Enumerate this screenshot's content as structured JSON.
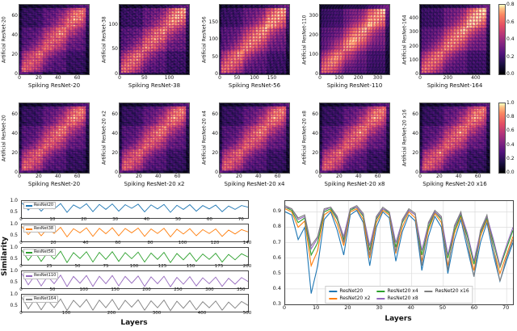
{
  "colorbars": [
    {
      "ticks": [
        0.0,
        0.2,
        0.4,
        0.6,
        0.8
      ],
      "vmax": 0.8
    },
    {
      "ticks": [
        0.0,
        0.2,
        0.4,
        0.6,
        0.8,
        1.0
      ],
      "vmax": 1.0
    }
  ],
  "chart_data": [
    {
      "type": "heatmap",
      "xlabel": "Spiking ResNet-20",
      "ylabel": "Artificial ResNet-20",
      "n_layers": 72,
      "xticks": [
        0,
        20,
        40,
        60
      ],
      "yticks": [
        0,
        20,
        40,
        60
      ],
      "colormap": "magma",
      "vmin": 0.0,
      "vmax": 0.8,
      "seed": 1
    },
    {
      "type": "heatmap",
      "xlabel": "Spiking ResNet-38",
      "ylabel": "Artificial ResNet-38",
      "n_layers": 140,
      "xticks": [
        0,
        50,
        100
      ],
      "yticks": [
        0,
        50,
        100
      ],
      "colormap": "magma",
      "vmin": 0.0,
      "vmax": 0.8,
      "seed": 2
    },
    {
      "type": "heatmap",
      "xlabel": "Spiking ResNet-56",
      "ylabel": "Artificial ResNet-56",
      "n_layers": 200,
      "xticks": [
        0,
        50,
        100,
        150
      ],
      "yticks": [
        0,
        50,
        100,
        150
      ],
      "colormap": "magma",
      "vmin": 0.0,
      "vmax": 0.8,
      "seed": 3
    },
    {
      "type": "heatmap",
      "xlabel": "Spiking ResNet-110",
      "ylabel": "Artificial ResNet-110",
      "n_layers": 360,
      "xticks": [
        0,
        100,
        200,
        300
      ],
      "yticks": [
        0,
        100,
        200,
        300
      ],
      "colormap": "magma",
      "vmin": 0.0,
      "vmax": 0.8,
      "seed": 4
    },
    {
      "type": "heatmap",
      "xlabel": "Spiking ResNet-164",
      "ylabel": "Artificial ResNet-164",
      "n_layers": 500,
      "xticks": [
        0,
        200,
        400
      ],
      "yticks": [
        0,
        100,
        200,
        300,
        400
      ],
      "colormap": "magma",
      "vmin": 0.0,
      "vmax": 0.8,
      "seed": 5
    },
    {
      "type": "heatmap",
      "xlabel": "Spiking ResNet-20",
      "ylabel": "Artificial ResNet-20",
      "n_layers": 72,
      "xticks": [
        0,
        20,
        40,
        60
      ],
      "yticks": [
        0,
        20,
        40,
        60
      ],
      "colormap": "magma",
      "vmin": 0.0,
      "vmax": 1.0,
      "seed": 6
    },
    {
      "type": "heatmap",
      "xlabel": "Spiking ResNet-20 x2",
      "ylabel": "Artificial ResNet-20 x2",
      "n_layers": 72,
      "xticks": [
        0,
        20,
        40,
        60
      ],
      "yticks": [
        0,
        20,
        40,
        60
      ],
      "colormap": "magma",
      "vmin": 0.0,
      "vmax": 1.0,
      "seed": 7
    },
    {
      "type": "heatmap",
      "xlabel": "Spiking ResNet-20 x4",
      "ylabel": "Artificial ResNet-20 x4",
      "n_layers": 72,
      "xticks": [
        0,
        20,
        40,
        60
      ],
      "yticks": [
        0,
        20,
        40,
        60
      ],
      "colormap": "magma",
      "vmin": 0.0,
      "vmax": 1.0,
      "seed": 8
    },
    {
      "type": "heatmap",
      "xlabel": "Spiking ResNet-20 x8",
      "ylabel": "Artificial ResNet-20 x8",
      "n_layers": 72,
      "xticks": [
        0,
        20,
        40,
        60
      ],
      "yticks": [
        0,
        20,
        40,
        60
      ],
      "colormap": "magma",
      "vmin": 0.0,
      "vmax": 1.0,
      "seed": 9
    },
    {
      "type": "heatmap",
      "xlabel": "Spiking ResNet-20 x16",
      "ylabel": "Artificial ResNet-20 x16",
      "n_layers": 72,
      "xticks": [
        0,
        20,
        40,
        60
      ],
      "yticks": [
        0,
        20,
        40,
        60
      ],
      "colormap": "magma",
      "vmin": 0.0,
      "vmax": 1.0,
      "seed": 10
    },
    {
      "type": "line",
      "layout": "stacked",
      "xlabel": "Layers",
      "ylabel": "Similarity",
      "ylim": [
        0.3,
        1.05
      ],
      "panels": [
        {
          "label": "ResNet20",
          "color": "#1f77b4",
          "x_max": 72,
          "xticks": [
            0,
            10,
            20,
            30,
            40,
            50,
            60,
            70
          ],
          "yticks": [
            0.5,
            1.0
          ],
          "values": [
            0.97,
            0.65,
            0.92,
            0.6,
            0.9,
            0.7,
            0.94,
            0.55,
            0.88,
            0.72,
            0.93,
            0.58,
            0.9,
            0.68,
            0.92,
            0.6,
            0.89,
            0.73,
            0.91,
            0.57,
            0.88,
            0.7,
            0.9,
            0.55,
            0.86,
            0.68,
            0.89,
            0.6,
            0.85,
            0.7,
            0.87,
            0.58,
            0.83,
            0.68,
            0.85,
            0.78
          ]
        },
        {
          "label": "ResNet38",
          "color": "#ff7f0e",
          "x_max": 140,
          "xticks": [
            0,
            20,
            40,
            60,
            80,
            100,
            120,
            140
          ],
          "yticks": [
            0.5,
            1.0
          ],
          "values": [
            0.96,
            0.6,
            0.9,
            0.55,
            0.88,
            0.65,
            0.92,
            0.5,
            0.86,
            0.68,
            0.9,
            0.52,
            0.88,
            0.64,
            0.9,
            0.55,
            0.87,
            0.68,
            0.89,
            0.52,
            0.85,
            0.65,
            0.88,
            0.5,
            0.84,
            0.63,
            0.86,
            0.55,
            0.82,
            0.65,
            0.85,
            0.52,
            0.8,
            0.63,
            0.82,
            0.72
          ]
        },
        {
          "label": "ResNet56",
          "color": "#2ca02c",
          "x_max": 200,
          "xticks": [
            0,
            25,
            50,
            75,
            100,
            125,
            150,
            175,
            200
          ],
          "yticks": [
            0.5,
            1.0
          ],
          "values": [
            0.95,
            0.5,
            0.88,
            0.45,
            0.85,
            0.55,
            0.9,
            0.4,
            0.84,
            0.58,
            0.88,
            0.42,
            0.85,
            0.54,
            0.88,
            0.45,
            0.84,
            0.57,
            0.86,
            0.42,
            0.82,
            0.54,
            0.85,
            0.4,
            0.8,
            0.52,
            0.83,
            0.45,
            0.78,
            0.54,
            0.81,
            0.42,
            0.76,
            0.52,
            0.79,
            0.65
          ]
        },
        {
          "label": "ResNet110",
          "color": "#9467bd",
          "x_max": 360,
          "xticks": [
            0,
            50,
            100,
            150,
            200,
            250,
            300,
            350
          ],
          "yticks": [
            0.5,
            1.0
          ],
          "values": [
            0.95,
            0.45,
            0.86,
            0.4,
            0.83,
            0.5,
            0.88,
            0.37,
            0.82,
            0.52,
            0.86,
            0.38,
            0.83,
            0.5,
            0.86,
            0.4,
            0.82,
            0.52,
            0.84,
            0.38,
            0.8,
            0.5,
            0.83,
            0.36,
            0.78,
            0.48,
            0.81,
            0.4,
            0.76,
            0.5,
            0.79,
            0.38,
            0.74,
            0.48,
            0.77,
            0.6
          ]
        },
        {
          "label": "ResNet164",
          "color": "#7f7f7f",
          "x_max": 500,
          "xticks": [
            0,
            100,
            200,
            300,
            400,
            500
          ],
          "yticks": [
            0.5,
            1.0
          ],
          "values": [
            0.94,
            0.42,
            0.84,
            0.38,
            0.81,
            0.47,
            0.86,
            0.35,
            0.8,
            0.5,
            0.84,
            0.36,
            0.81,
            0.47,
            0.84,
            0.38,
            0.8,
            0.5,
            0.82,
            0.36,
            0.78,
            0.47,
            0.81,
            0.34,
            0.76,
            0.45,
            0.79,
            0.38,
            0.74,
            0.47,
            0.77,
            0.36,
            0.72,
            0.45,
            0.75,
            0.58
          ]
        }
      ]
    },
    {
      "type": "line",
      "xlabel": "Layers",
      "x_max": 72,
      "xticks": [
        0,
        10,
        20,
        30,
        40,
        50,
        60,
        70
      ],
      "ylim": [
        0.3,
        0.97
      ],
      "yticks": [
        0.3,
        0.4,
        0.5,
        0.6,
        0.7,
        0.8,
        0.9
      ],
      "grid": true,
      "legend_position": "lower center",
      "series": [
        {
          "name": "ResNet20",
          "color": "#1f77b4",
          "values": [
            0.9,
            0.88,
            0.72,
            0.8,
            0.37,
            0.55,
            0.85,
            0.9,
            0.78,
            0.62,
            0.88,
            0.91,
            0.83,
            0.55,
            0.8,
            0.9,
            0.86,
            0.58,
            0.77,
            0.88,
            0.84,
            0.52,
            0.74,
            0.87,
            0.8,
            0.5,
            0.72,
            0.85,
            0.66,
            0.48,
            0.7,
            0.83,
            0.62,
            0.45,
            0.58,
            0.7
          ]
        },
        {
          "name": "ResNet20 x2",
          "color": "#ff7f0e",
          "values": [
            0.92,
            0.9,
            0.8,
            0.84,
            0.55,
            0.65,
            0.88,
            0.91,
            0.82,
            0.68,
            0.9,
            0.92,
            0.85,
            0.6,
            0.83,
            0.91,
            0.88,
            0.63,
            0.8,
            0.9,
            0.86,
            0.58,
            0.78,
            0.89,
            0.83,
            0.55,
            0.76,
            0.87,
            0.7,
            0.52,
            0.74,
            0.85,
            0.66,
            0.5,
            0.62,
            0.74
          ]
        },
        {
          "name": "ResNet20 x4",
          "color": "#2ca02c",
          "values": [
            0.93,
            0.91,
            0.83,
            0.86,
            0.62,
            0.7,
            0.9,
            0.92,
            0.85,
            0.72,
            0.91,
            0.93,
            0.87,
            0.65,
            0.85,
            0.92,
            0.89,
            0.67,
            0.83,
            0.91,
            0.88,
            0.62,
            0.8,
            0.9,
            0.85,
            0.6,
            0.78,
            0.88,
            0.74,
            0.56,
            0.76,
            0.86,
            0.7,
            0.54,
            0.66,
            0.78
          ]
        },
        {
          "name": "ResNet20 x8",
          "color": "#9467bd",
          "values": [
            0.93,
            0.92,
            0.85,
            0.87,
            0.66,
            0.73,
            0.91,
            0.93,
            0.86,
            0.74,
            0.92,
            0.93,
            0.88,
            0.68,
            0.86,
            0.92,
            0.9,
            0.7,
            0.84,
            0.91,
            0.88,
            0.65,
            0.82,
            0.9,
            0.86,
            0.62,
            0.8,
            0.89,
            0.76,
            0.58,
            0.77,
            0.87,
            0.72,
            0.55,
            0.68,
            0.8
          ]
        },
        {
          "name": "ResNet20 x16",
          "color": "#7f7f7f",
          "values": [
            0.94,
            0.92,
            0.86,
            0.88,
            0.68,
            0.74,
            0.92,
            0.93,
            0.87,
            0.7,
            0.92,
            0.94,
            0.89,
            0.62,
            0.87,
            0.93,
            0.9,
            0.64,
            0.85,
            0.92,
            0.89,
            0.55,
            0.83,
            0.91,
            0.87,
            0.52,
            0.81,
            0.9,
            0.7,
            0.48,
            0.78,
            0.88,
            0.66,
            0.45,
            0.6,
            0.72
          ]
        }
      ]
    }
  ]
}
